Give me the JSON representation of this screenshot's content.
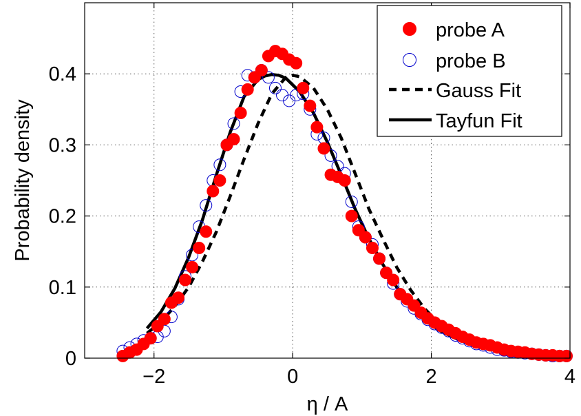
{
  "chart_data": {
    "type": "scatter",
    "title": "",
    "xlabel": "η / A",
    "ylabel": "Probability density",
    "xlim": [
      -3,
      4
    ],
    "ylim": [
      0,
      0.5
    ],
    "xticks": [
      -2,
      0,
      2,
      4
    ],
    "xtick_labels": [
      "−2",
      "0",
      "2",
      "4"
    ],
    "yticks": [
      0,
      0.1,
      0.2,
      0.3,
      0.4
    ],
    "ytick_labels": [
      "0",
      "0.1",
      "0.2",
      "0.3",
      "0.4"
    ],
    "grid": true,
    "legend_position": "top-right",
    "legend": [
      "probe A",
      "probe B",
      "Gauss Fit",
      "Tayfun Fit"
    ],
    "colors": {
      "probe_A": "#ff0000",
      "probe_B": "#0000cc",
      "fits": "#000000"
    },
    "series": [
      {
        "name": "probe A",
        "style": "filled-circle",
        "x": [
          -2.45,
          -2.35,
          -2.25,
          -2.15,
          -2.05,
          -1.95,
          -1.85,
          -1.75,
          -1.65,
          -1.55,
          -1.45,
          -1.35,
          -1.25,
          -1.15,
          -1.05,
          -0.95,
          -0.85,
          -0.75,
          -0.65,
          -0.55,
          -0.45,
          -0.35,
          -0.25,
          -0.15,
          -0.05,
          0.05,
          0.15,
          0.25,
          0.35,
          0.45,
          0.55,
          0.65,
          0.75,
          0.85,
          0.95,
          1.05,
          1.15,
          1.25,
          1.35,
          1.45,
          1.55,
          1.65,
          1.75,
          1.85,
          1.95,
          2.05,
          2.15,
          2.25,
          2.35,
          2.45,
          2.55,
          2.65,
          2.75,
          2.85,
          2.95,
          3.05,
          3.15,
          3.25,
          3.35,
          3.45,
          3.55,
          3.65,
          3.75,
          3.85,
          3.95
        ],
        "y": [
          0.003,
          0.008,
          0.012,
          0.02,
          0.028,
          0.045,
          0.055,
          0.078,
          0.085,
          0.11,
          0.128,
          0.155,
          0.178,
          0.235,
          0.25,
          0.3,
          0.308,
          0.345,
          0.378,
          0.395,
          0.405,
          0.425,
          0.432,
          0.428,
          0.42,
          0.415,
          0.38,
          0.355,
          0.325,
          0.295,
          0.258,
          0.255,
          0.25,
          0.2,
          0.18,
          0.17,
          0.155,
          0.14,
          0.12,
          0.11,
          0.09,
          0.083,
          0.074,
          0.064,
          0.056,
          0.05,
          0.045,
          0.04,
          0.035,
          0.03,
          0.026,
          0.022,
          0.02,
          0.018,
          0.015,
          0.012,
          0.01,
          0.009,
          0.008,
          0.006,
          0.005,
          0.004,
          0.004,
          0.003,
          0.003
        ]
      },
      {
        "name": "probe B",
        "style": "open-circle",
        "x": [
          -2.45,
          -2.35,
          -2.25,
          -2.15,
          -2.05,
          -1.95,
          -1.85,
          -1.75,
          -1.65,
          -1.55,
          -1.45,
          -1.35,
          -1.25,
          -1.15,
          -1.05,
          -0.95,
          -0.85,
          -0.75,
          -0.65,
          -0.55,
          -0.45,
          -0.35,
          -0.25,
          -0.15,
          -0.05,
          0.05,
          0.15,
          0.25,
          0.35,
          0.45,
          0.55,
          0.65,
          0.75,
          0.85,
          0.95,
          1.05,
          1.15,
          1.25,
          1.35,
          1.45,
          1.55,
          1.65,
          1.75,
          1.85,
          1.95,
          2.05,
          2.15,
          2.25,
          2.35,
          2.45,
          2.55,
          2.65,
          2.75,
          2.85,
          2.95,
          3.05,
          3.15,
          3.25,
          3.35,
          3.45,
          3.55,
          3.65,
          3.75,
          3.85,
          3.95
        ],
        "y": [
          0.01,
          0.015,
          0.02,
          0.025,
          0.028,
          0.03,
          0.038,
          0.058,
          0.083,
          0.115,
          0.145,
          0.185,
          0.215,
          0.25,
          0.272,
          0.3,
          0.33,
          0.375,
          0.398,
          0.395,
          0.405,
          0.395,
          0.38,
          0.37,
          0.362,
          0.37,
          0.372,
          0.35,
          0.315,
          0.31,
          0.285,
          0.27,
          0.26,
          0.22,
          0.185,
          0.17,
          0.16,
          0.14,
          0.12,
          0.105,
          0.09,
          0.08,
          0.07,
          0.062,
          0.054,
          0.048,
          0.043,
          0.038,
          0.032,
          0.028,
          0.024,
          0.02,
          0.018,
          0.015,
          0.012,
          0.011,
          0.009,
          0.008,
          0.007,
          0.006,
          0.005,
          0.004,
          0.003,
          0.003,
          0.003
        ]
      },
      {
        "name": "Gauss Fit",
        "style": "dashed-line",
        "x": [
          -2.1,
          -1.9,
          -1.7,
          -1.5,
          -1.3,
          -1.1,
          -0.9,
          -0.7,
          -0.5,
          -0.3,
          -0.1,
          0.0,
          0.1,
          0.3,
          0.5,
          0.7,
          0.9,
          1.1,
          1.3,
          1.5,
          1.7,
          1.9,
          2.1,
          2.3,
          2.5,
          2.7,
          2.9,
          3.1,
          3.3,
          3.5,
          3.7,
          3.9
        ],
        "y": [
          0.035,
          0.051,
          0.073,
          0.1,
          0.136,
          0.178,
          0.228,
          0.28,
          0.33,
          0.372,
          0.395,
          0.398,
          0.396,
          0.38,
          0.35,
          0.31,
          0.26,
          0.21,
          0.168,
          0.128,
          0.096,
          0.07,
          0.05,
          0.036,
          0.026,
          0.018,
          0.013,
          0.009,
          0.007,
          0.005,
          0.004,
          0.003
        ]
      },
      {
        "name": "Tayfun Fit",
        "style": "solid-line",
        "x": [
          -2.1,
          -1.9,
          -1.7,
          -1.5,
          -1.3,
          -1.1,
          -0.9,
          -0.7,
          -0.5,
          -0.4,
          -0.3,
          -0.2,
          -0.1,
          0.1,
          0.3,
          0.5,
          0.7,
          0.9,
          1.1,
          1.3,
          1.5,
          1.7,
          1.9,
          2.1,
          2.3,
          2.5,
          2.7,
          2.9,
          3.1,
          3.3,
          3.5,
          3.7,
          3.9
        ],
        "y": [
          0.042,
          0.065,
          0.098,
          0.142,
          0.195,
          0.258,
          0.318,
          0.368,
          0.392,
          0.397,
          0.399,
          0.398,
          0.394,
          0.375,
          0.345,
          0.304,
          0.258,
          0.21,
          0.168,
          0.132,
          0.1,
          0.074,
          0.055,
          0.04,
          0.03,
          0.022,
          0.016,
          0.012,
          0.009,
          0.007,
          0.005,
          0.004,
          0.003
        ]
      }
    ]
  }
}
